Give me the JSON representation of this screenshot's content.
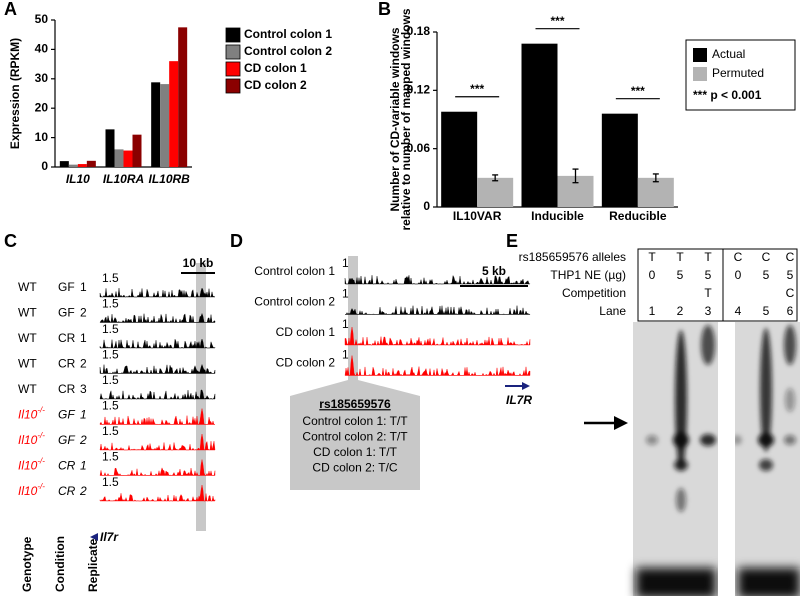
{
  "panels": [
    "A",
    "B",
    "C",
    "D",
    "E"
  ],
  "chart_data": [
    {
      "type": "bar",
      "y_label": "Expression (RPKM)",
      "categories": [
        "IL10",
        "IL10RA",
        "IL10RB"
      ],
      "series": [
        {
          "name": "Control colon 1",
          "color": "#000000",
          "values": [
            2,
            12.8,
            28.8
          ]
        },
        {
          "name": "Control colon 2",
          "color": "#808080",
          "values": [
            0.8,
            6,
            28.2
          ]
        },
        {
          "name": "CD colon 1",
          "color": "#ff0000",
          "values": [
            1,
            5.6,
            36
          ]
        },
        {
          "name": "CD colon 2",
          "color": "#8b0000",
          "values": [
            2.1,
            11,
            47.5
          ]
        }
      ],
      "ylim": [
        0,
        50
      ],
      "yticks": [
        0,
        10,
        20,
        30,
        40,
        50
      ]
    },
    {
      "type": "bar",
      "y_label": [
        "Number of CD-variable windows",
        "relative to number of mapped windows"
      ],
      "categories": [
        "IL10VAR",
        "Inducible",
        "Reducible"
      ],
      "series": [
        {
          "name": "Actual",
          "color": "#000000",
          "values": [
            0.098,
            0.168,
            0.096
          ]
        },
        {
          "name": "Permuted",
          "color": "#b3b3b3",
          "values": [
            0.03,
            0.032,
            0.03
          ],
          "errors": [
            0.003,
            0.007,
            0.004
          ]
        }
      ],
      "significance": [
        "***",
        "***",
        "***"
      ],
      "legend_note": "*** p < 0.001",
      "ylim": [
        0,
        0.18
      ],
      "yticks": [
        0,
        0.06,
        0.12,
        0.18
      ]
    }
  ],
  "panel_c": {
    "scale_bar": "10 kb",
    "gene": "Il7r",
    "columns": [
      "Genotype",
      "Condition",
      "Replicate"
    ],
    "rows": [
      {
        "genotype": "WT",
        "condition": "GF",
        "replicate": "1",
        "scale": 1.5,
        "color": "#000000"
      },
      {
        "genotype": "WT",
        "condition": "GF",
        "replicate": "2",
        "scale": 1.5,
        "color": "#000000"
      },
      {
        "genotype": "WT",
        "condition": "CR",
        "replicate": "1",
        "scale": 1.5,
        "color": "#000000"
      },
      {
        "genotype": "WT",
        "condition": "CR",
        "replicate": "2",
        "scale": 1.5,
        "color": "#000000"
      },
      {
        "genotype": "WT",
        "condition": "CR",
        "replicate": "3",
        "scale": 1.5,
        "color": "#000000"
      },
      {
        "genotype": "Il10",
        "superscript": "-/-",
        "condition": "GF",
        "replicate": "1",
        "scale": 1.5,
        "color": "#ff0000"
      },
      {
        "genotype": "Il10",
        "superscript": "-/-",
        "condition": "GF",
        "replicate": "2",
        "scale": 1.5,
        "color": "#ff0000"
      },
      {
        "genotype": "Il10",
        "superscript": "-/-",
        "condition": "CR",
        "replicate": "1",
        "scale": 1.5,
        "color": "#ff0000"
      },
      {
        "genotype": "Il10",
        "superscript": "-/-",
        "condition": "CR",
        "replicate": "2",
        "scale": 1.5,
        "color": "#ff0000"
      }
    ]
  },
  "panel_d": {
    "scale_bar": "5 kb",
    "gene": "IL7R",
    "rows": [
      {
        "label": "Control colon 1",
        "scale": 1,
        "color": "#000000"
      },
      {
        "label": "Control colon 2",
        "scale": 1,
        "color": "#000000"
      },
      {
        "label": "CD colon 1",
        "scale": 1,
        "color": "#ff0000"
      },
      {
        "label": "CD colon 2",
        "scale": 1,
        "color": "#ff0000"
      }
    ],
    "callout": {
      "title": "rs185659576",
      "lines": [
        {
          "text": "Control colon 1: T/T",
          "color": "#000000"
        },
        {
          "text": "Control colon 2: T/T",
          "color": "#000000"
        },
        {
          "text": "CD colon 1: T/T",
          "color": "#ff0000"
        },
        {
          "text": "CD colon 2: T/C",
          "color": "#ff0000"
        }
      ]
    }
  },
  "panel_e": {
    "table": {
      "rows": [
        {
          "label": "rs185659576 alleles",
          "cells": [
            "T",
            "T",
            "T",
            "C",
            "C",
            "C"
          ]
        },
        {
          "label": "THP1 NE (µg)",
          "cells": [
            0,
            5,
            5,
            0,
            5,
            5
          ]
        },
        {
          "label": "Competition",
          "cells": [
            null,
            null,
            "T",
            null,
            null,
            "C"
          ]
        },
        {
          "label": "Lane",
          "cells": [
            1,
            2,
            3,
            4,
            5,
            6
          ]
        }
      ]
    }
  }
}
